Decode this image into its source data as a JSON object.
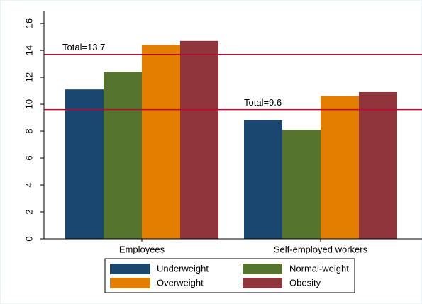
{
  "chart_data": {
    "type": "bar",
    "categories": [
      "Employees",
      "Self-employed workers"
    ],
    "series": [
      {
        "name": "Underweight",
        "color": "#1a476f",
        "values": [
          11.1,
          8.8
        ]
      },
      {
        "name": "Normal-weight",
        "color": "#55752f",
        "values": [
          12.4,
          8.1
        ]
      },
      {
        "name": "Overweight",
        "color": "#e37e00",
        "values": [
          14.4,
          10.6
        ]
      },
      {
        "name": "Obesity",
        "color": "#90353b",
        "values": [
          14.7,
          10.9
        ]
      }
    ],
    "reference_lines": [
      {
        "value": 13.7,
        "label": "Total=13.7",
        "color": "#c10534"
      },
      {
        "value": 9.6,
        "label": "Total=9.6",
        "color": "#c10534"
      }
    ],
    "ylim": [
      0,
      16.9
    ],
    "yticks": [
      0,
      2,
      4,
      6,
      8,
      10,
      12,
      14,
      16
    ],
    "grid": false
  }
}
